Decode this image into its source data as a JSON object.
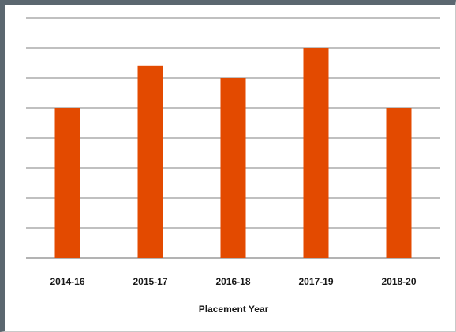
{
  "chart_data": {
    "type": "bar",
    "categories": [
      "2014-16",
      "2015-17",
      "2016-18",
      "2017-19",
      "2018-20"
    ],
    "values": [
      5,
      6.4,
      6,
      7,
      5
    ],
    "title": "",
    "xlabel": "Placement Year",
    "ylabel": "",
    "ylim": [
      0,
      8
    ],
    "grid": true,
    "legend": "none",
    "bar_color": "#e34a00",
    "grid_color": "#9a9a9a"
  }
}
